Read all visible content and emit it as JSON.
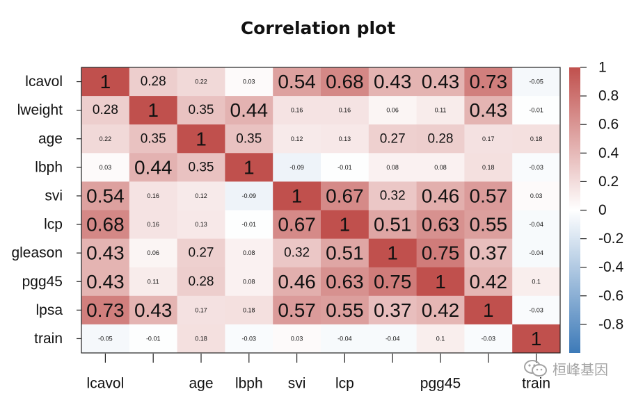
{
  "chart_data": {
    "type": "heatmap",
    "title": "Correlation plot",
    "variables": [
      "lcavol",
      "lweight",
      "age",
      "lbph",
      "svi",
      "lcp",
      "gleason",
      "pgg45",
      "lpsa",
      "train"
    ],
    "x_tick_labels_shown": [
      "lcavol",
      "",
      "age",
      "lbph",
      "svi",
      "lcp",
      "",
      "pgg45",
      "",
      "train"
    ],
    "matrix": [
      [
        1,
        0.28,
        0.22,
        0.03,
        0.54,
        0.68,
        0.43,
        0.43,
        0.73,
        -0.05
      ],
      [
        0.28,
        1,
        0.35,
        0.44,
        0.16,
        0.16,
        0.06,
        0.11,
        0.43,
        -0.01
      ],
      [
        0.22,
        0.35,
        1,
        0.35,
        0.12,
        0.13,
        0.27,
        0.28,
        0.17,
        0.18
      ],
      [
        0.03,
        0.44,
        0.35,
        1,
        -0.09,
        -0.01,
        0.08,
        0.08,
        0.18,
        -0.03
      ],
      [
        0.54,
        0.16,
        0.12,
        -0.09,
        1,
        0.67,
        0.32,
        0.46,
        0.57,
        0.03
      ],
      [
        0.68,
        0.16,
        0.13,
        -0.01,
        0.67,
        1,
        0.51,
        0.63,
        0.55,
        -0.04
      ],
      [
        0.43,
        0.06,
        0.27,
        0.08,
        0.32,
        0.51,
        1,
        0.75,
        0.37,
        -0.04
      ],
      [
        0.43,
        0.11,
        0.28,
        0.08,
        0.46,
        0.63,
        0.75,
        1,
        0.42,
        0.1
      ],
      [
        0.73,
        0.43,
        0.17,
        0.18,
        0.57,
        0.55,
        0.37,
        0.42,
        1,
        -0.03
      ],
      [
        -0.05,
        -0.01,
        0.18,
        -0.03,
        0.03,
        -0.04,
        -0.04,
        0.1,
        -0.03,
        1
      ]
    ],
    "colorbar": {
      "range": [
        -1,
        1
      ],
      "ticks": [
        1,
        0.8,
        0.6,
        0.4,
        0.2,
        0,
        -0.2,
        -0.4,
        -0.6,
        -0.8
      ],
      "tick_labels": [
        "1",
        "0.8",
        "0.6",
        "0.4",
        "0.2",
        "0",
        "-0.2",
        "-0.4",
        "-0.6",
        "-0.8"
      ],
      "colors": {
        "low": "#3d7ab8",
        "mid": "#ffffff",
        "high": "#c0504d"
      }
    }
  },
  "watermark": {
    "text": "桓峰基因",
    "icon": "wechat-icon"
  }
}
